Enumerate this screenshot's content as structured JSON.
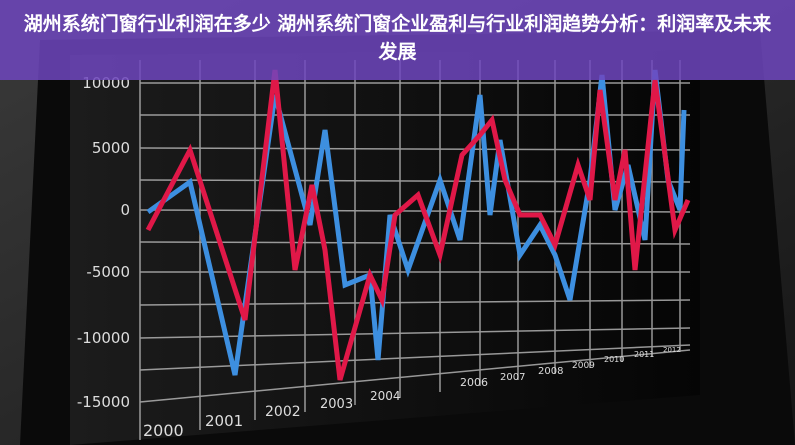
{
  "header": {
    "title": "湖州系统门窗行业利润在多少 湖州系统门窗企业盈利与行业利润趋势分析：利润率及未来发展"
  },
  "screen": {
    "y_labels": [
      "10000",
      "5000",
      "0",
      "-5000",
      "-10000",
      "-15000"
    ],
    "x_labels": [
      "2000",
      "2001",
      "2002",
      "2003",
      "2004",
      "2006",
      "2007",
      "2008",
      "2009",
      "2010",
      "2011",
      "2012"
    ]
  }
}
